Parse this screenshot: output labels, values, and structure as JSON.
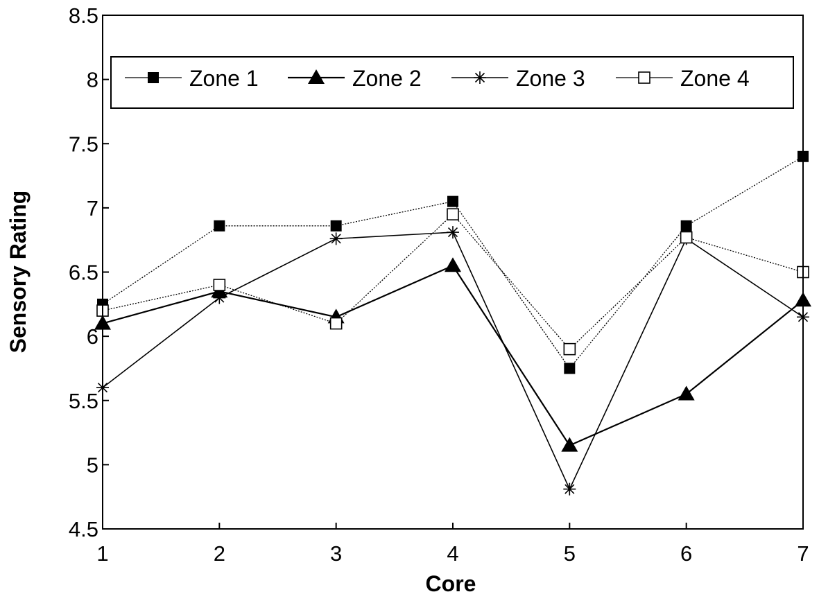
{
  "chart_data": {
    "type": "line",
    "title": "",
    "xlabel": "Core",
    "ylabel": "Sensory Rating",
    "x": [
      1,
      2,
      3,
      4,
      5,
      6,
      7
    ],
    "xlim": [
      1,
      7
    ],
    "ylim": [
      4.5,
      8.5
    ],
    "yticks": [
      "4.5",
      "5",
      "5.5",
      "6",
      "6.5",
      "7",
      "7.5",
      "8",
      "8.5"
    ],
    "xticks": [
      "1",
      "2",
      "3",
      "4",
      "5",
      "6",
      "7"
    ],
    "grid": false,
    "legend": "top",
    "series": [
      {
        "name": "Zone 1",
        "marker": "filled-square",
        "values": [
          6.25,
          6.86,
          6.86,
          7.05,
          5.75,
          6.86,
          7.4
        ]
      },
      {
        "name": "Zone 2",
        "marker": "filled-triangle",
        "values": [
          6.1,
          6.35,
          6.15,
          6.55,
          5.15,
          5.55,
          6.28
        ]
      },
      {
        "name": "Zone 3",
        "marker": "asterisk",
        "values": [
          5.6,
          6.3,
          6.76,
          6.81,
          4.81,
          6.76,
          6.15
        ]
      },
      {
        "name": "Zone 4",
        "marker": "open-square",
        "values": [
          6.2,
          6.4,
          6.1,
          6.95,
          5.9,
          6.77,
          6.5
        ]
      }
    ]
  }
}
